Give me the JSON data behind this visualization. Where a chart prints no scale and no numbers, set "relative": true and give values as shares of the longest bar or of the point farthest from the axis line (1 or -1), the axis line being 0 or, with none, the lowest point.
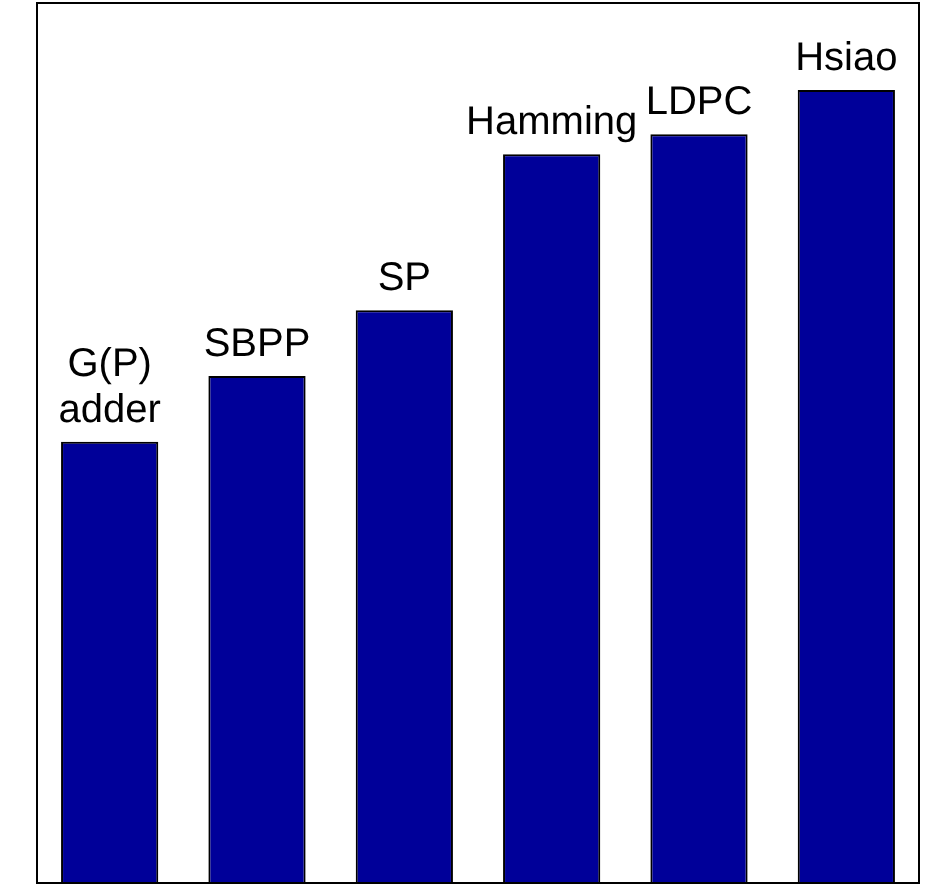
{
  "chart_data": {
    "type": "bar",
    "relative": true,
    "categories": [
      "G(P) adder",
      "SBPP",
      "SP",
      "Hamming",
      "LDPC",
      "Hsiao"
    ],
    "values": [
      0.556,
      0.639,
      0.722,
      0.919,
      0.944,
      1
    ],
    "color": "#000099"
  }
}
